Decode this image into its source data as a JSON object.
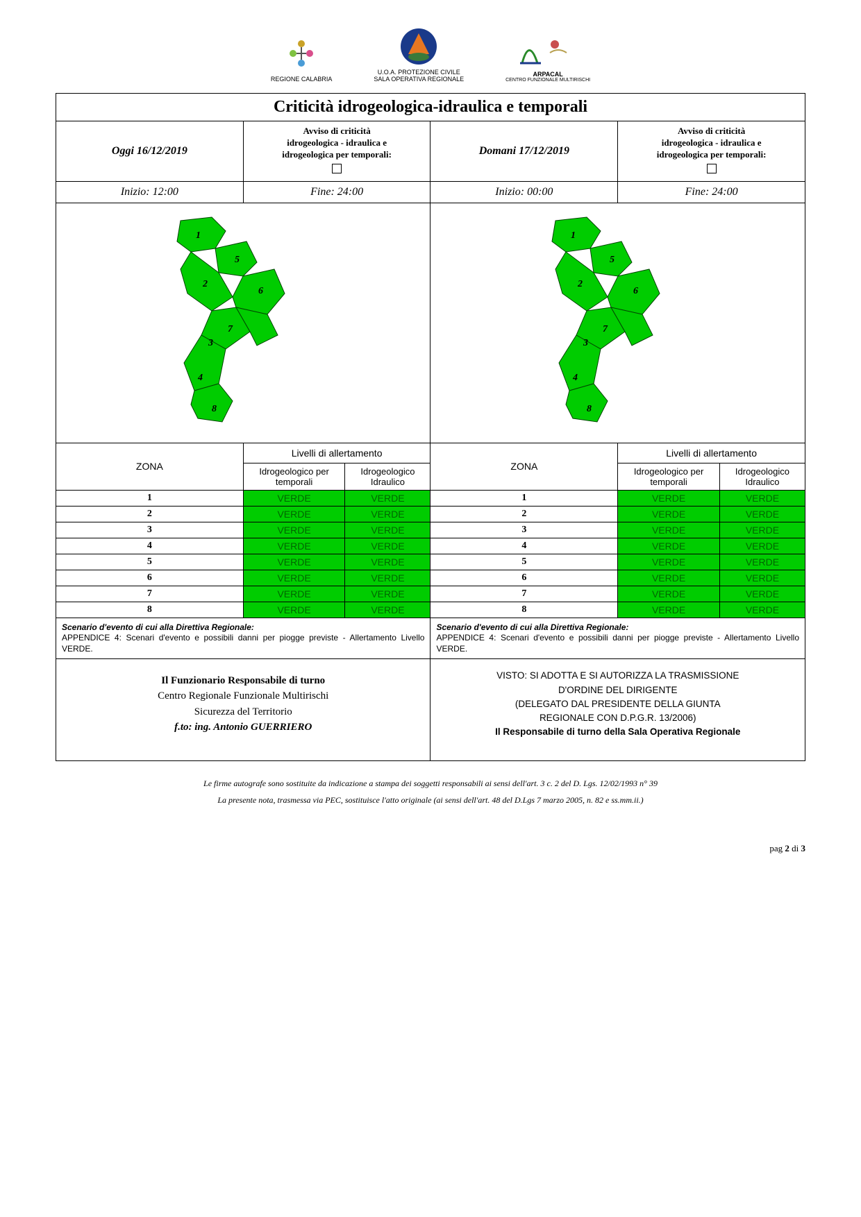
{
  "header": {
    "logo1_label": "REGIONE CALABRIA",
    "logo2_line1": "U.O.A. PROTEZIONE CIVILE",
    "logo2_line2": "SALA OPERATIVA REGIONALE",
    "logo3_label": "ARPACAL",
    "logo3_sub": "CENTRO FUNZIONALE MULTIRISCHI"
  },
  "title": "Criticità idrogeologica-idraulica e temporali",
  "today": {
    "date_label": "Oggi 16/12/2019",
    "avviso_line1": "Avviso di criticità",
    "avviso_line2": "idrogeologica - idraulica e",
    "avviso_line3": "idrogeologica per temporali:",
    "inizio": "Inizio: 12:00",
    "fine": "Fine: 24:00"
  },
  "tomorrow": {
    "date_label": "Domani 17/12/2019",
    "avviso_line1": "Avviso di criticità",
    "avviso_line2": "idrogeologica - idraulica e",
    "avviso_line3": "idrogeologica per temporali:",
    "inizio": "Inizio: 00:00",
    "fine": "Fine: 24:00"
  },
  "map": {
    "zone_fill": "#00cc00",
    "zone_stroke": "#2a5a2a",
    "labels": [
      "1",
      "2",
      "3",
      "4",
      "5",
      "6",
      "7",
      "8"
    ]
  },
  "headers": {
    "zona": "ZONA",
    "livelli": "Livelli di allertamento",
    "col_temporali": "Idrogeologico per temporali",
    "col_idraulico": "Idrogeologico Idraulico"
  },
  "alert": {
    "label": "VERDE",
    "bg": "#00cc00",
    "text_color": "#006600"
  },
  "zones_today": [
    {
      "n": "1",
      "a": "VERDE",
      "b": "VERDE"
    },
    {
      "n": "2",
      "a": "VERDE",
      "b": "VERDE"
    },
    {
      "n": "3",
      "a": "VERDE",
      "b": "VERDE"
    },
    {
      "n": "4",
      "a": "VERDE",
      "b": "VERDE"
    },
    {
      "n": "5",
      "a": "VERDE",
      "b": "VERDE"
    },
    {
      "n": "6",
      "a": "VERDE",
      "b": "VERDE"
    },
    {
      "n": "7",
      "a": "VERDE",
      "b": "VERDE"
    },
    {
      "n": "8",
      "a": "VERDE",
      "b": "VERDE"
    }
  ],
  "zones_tomorrow": [
    {
      "n": "1",
      "a": "VERDE",
      "b": "VERDE"
    },
    {
      "n": "2",
      "a": "VERDE",
      "b": "VERDE"
    },
    {
      "n": "3",
      "a": "VERDE",
      "b": "VERDE"
    },
    {
      "n": "4",
      "a": "VERDE",
      "b": "VERDE"
    },
    {
      "n": "5",
      "a": "VERDE",
      "b": "VERDE"
    },
    {
      "n": "6",
      "a": "VERDE",
      "b": "VERDE"
    },
    {
      "n": "7",
      "a": "VERDE",
      "b": "VERDE"
    },
    {
      "n": "8",
      "a": "VERDE",
      "b": "VERDE"
    }
  ],
  "scenario": {
    "bold": "Scenario d'evento di cui alla Direttiva Regionale:",
    "text": "APPENDICE 4: Scenari d'evento e possibili danni per piogge previste - Allertamento Livello VERDE."
  },
  "signature_left": {
    "l1": "Il Funzionario Responsabile di turno",
    "l2": "Centro Regionale Funzionale Multirischi",
    "l3": "Sicurezza del Territorio",
    "l4": "f.to: ing. Antonio GUERRIERO"
  },
  "signature_right": {
    "l1": "VISTO: SI ADOTTA E SI AUTORIZZA LA TRASMISSIONE",
    "l2": "D'ORDINE DEL DIRIGENTE",
    "l3": "(DELEGATO DAL PRESIDENTE DELLA GIUNTA",
    "l4": "REGIONALE CON D.P.G.R. 13/2006)",
    "l5": "Il Responsabile di turno della Sala Operativa Regionale"
  },
  "footer": {
    "note1": "Le firme autografe sono sostituite da indicazione a stampa dei soggetti responsabili ai sensi dell'art. 3 c. 2 del D. Lgs. 12/02/1993 n°  39",
    "note2": "La presente nota, trasmessa via PEC, sostituisce l'atto originale (ai sensi dell'art. 48 del D.Lgs 7 marzo 2005, n. 82 e ss.mm.ii.)",
    "page_prefix": "pag ",
    "page_cur": "2",
    "page_sep": " di ",
    "page_tot": "3"
  }
}
